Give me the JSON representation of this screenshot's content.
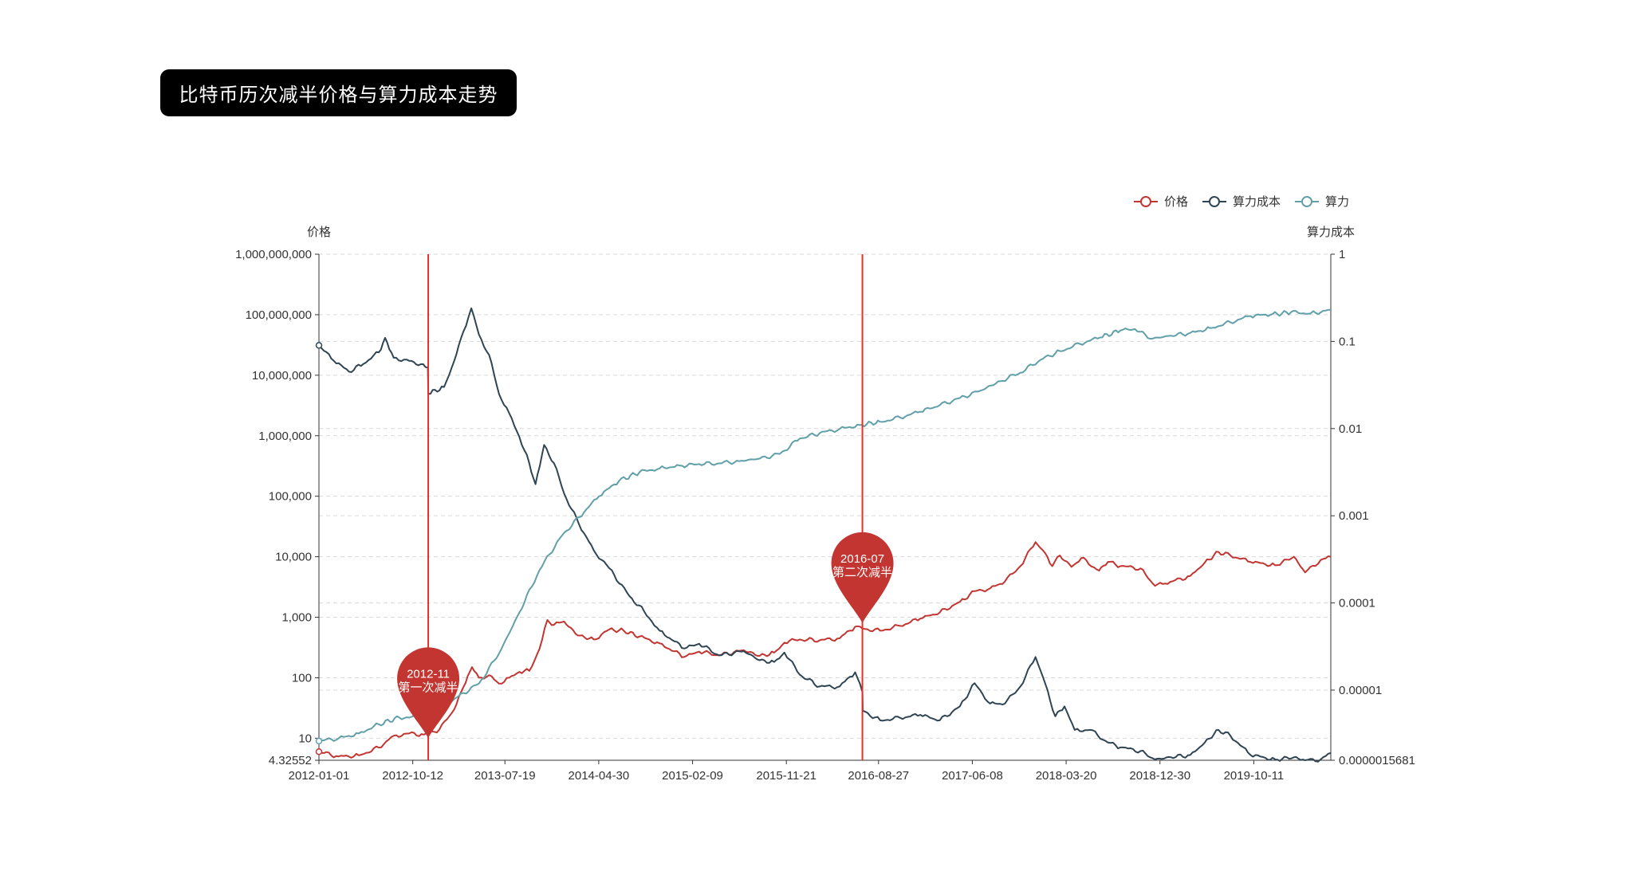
{
  "title": "比特币历次减半价格与算力成本走势",
  "colors": {
    "price": "#c23531",
    "cost": "#2f4554",
    "hashrate": "#61a0a8",
    "halving_line": "#e8302a",
    "grid": "#d9d9d9",
    "axis": "#333333"
  },
  "chart_data": {
    "type": "line",
    "legend": {
      "position": "top-right",
      "items": [
        {
          "name": "价格",
          "color": "#c23531"
        },
        {
          "name": "算力成本",
          "color": "#2f4554"
        },
        {
          "name": "算力",
          "color": "#61a0a8"
        }
      ]
    },
    "x_axis": {
      "type": "date",
      "start": "2012-01-01",
      "end": "2020-06-01",
      "tick_labels": [
        "2012-01-01",
        "2012-10-12",
        "2013-07-19",
        "2014-04-30",
        "2015-02-09",
        "2015-11-21",
        "2016-08-27",
        "2017-06-08",
        "2018-03-20",
        "2018-12-30",
        "2019-10-11"
      ]
    },
    "y_left": {
      "name": "价格",
      "scale": "log",
      "min": 4.32552,
      "max": 1000000000,
      "tick_labels": [
        "1,000,000,000",
        "100,000,000",
        "10,000,000",
        "1,000,000",
        "100,000",
        "10,000",
        "1,000",
        "100",
        "10",
        "4.32552"
      ],
      "tick_values": [
        1000000000,
        100000000,
        10000000,
        1000000,
        100000,
        10000,
        1000,
        100,
        10,
        4.32552
      ]
    },
    "y_right": {
      "name": "算力成本",
      "scale": "log",
      "min": 1.5681e-06,
      "max": 1,
      "tick_labels": [
        "1",
        "0.1",
        "0.01",
        "0.001",
        "0.0001",
        "0.00001",
        "0.0000015681"
      ],
      "tick_values": [
        1,
        0.1,
        0.01,
        0.001,
        0.0001,
        1e-05,
        1.5681e-06
      ]
    },
    "grid": true,
    "series": [
      {
        "name": "价格",
        "axis": "left",
        "points": [
          [
            "2012-01-01",
            6
          ],
          [
            "2012-03-01",
            5
          ],
          [
            "2012-05-01",
            5.2
          ],
          [
            "2012-07-01",
            7
          ],
          [
            "2012-08-15",
            11
          ],
          [
            "2012-10-01",
            12
          ],
          [
            "2012-11-15",
            11.5
          ],
          [
            "2013-01-01",
            14
          ],
          [
            "2013-02-15",
            30
          ],
          [
            "2013-03-15",
            70
          ],
          [
            "2013-04-10",
            150
          ],
          [
            "2013-05-01",
            100
          ],
          [
            "2013-06-01",
            110
          ],
          [
            "2013-07-01",
            80
          ],
          [
            "2013-08-01",
            100
          ],
          [
            "2013-09-01",
            125
          ],
          [
            "2013-10-01",
            130
          ],
          [
            "2013-11-01",
            300
          ],
          [
            "2013-11-25",
            900
          ],
          [
            "2013-12-15",
            750
          ],
          [
            "2014-01-15",
            850
          ],
          [
            "2014-02-25",
            500
          ],
          [
            "2014-04-15",
            430
          ],
          [
            "2014-06-01",
            630
          ],
          [
            "2014-07-15",
            600
          ],
          [
            "2014-09-01",
            480
          ],
          [
            "2014-11-01",
            370
          ],
          [
            "2015-01-15",
            220
          ],
          [
            "2015-03-01",
            270
          ],
          [
            "2015-05-01",
            235
          ],
          [
            "2015-07-15",
            285
          ],
          [
            "2015-09-01",
            230
          ],
          [
            "2015-10-15",
            260
          ],
          [
            "2015-11-15",
            380
          ],
          [
            "2016-01-01",
            430
          ],
          [
            "2016-03-01",
            415
          ],
          [
            "2016-05-01",
            450
          ],
          [
            "2016-06-17",
            700
          ],
          [
            "2016-07-09",
            650
          ],
          [
            "2016-09-01",
            600
          ],
          [
            "2016-11-01",
            720
          ],
          [
            "2017-01-01",
            950
          ],
          [
            "2017-03-01",
            1200
          ],
          [
            "2017-05-01",
            1800
          ],
          [
            "2017-06-15",
            2700
          ],
          [
            "2017-08-01",
            3000
          ],
          [
            "2017-09-15",
            3900
          ],
          [
            "2017-11-01",
            7000
          ],
          [
            "2017-12-17",
            17500
          ],
          [
            "2018-01-15",
            11500
          ],
          [
            "2018-02-06",
            7000
          ],
          [
            "2018-03-01",
            10500
          ],
          [
            "2018-04-05",
            6800
          ],
          [
            "2018-05-05",
            9500
          ],
          [
            "2018-06-28",
            5900
          ],
          [
            "2018-07-25",
            8200
          ],
          [
            "2018-09-01",
            7000
          ],
          [
            "2018-11-01",
            6400
          ],
          [
            "2018-12-15",
            3300
          ],
          [
            "2019-01-15",
            3600
          ],
          [
            "2019-04-01",
            4800
          ],
          [
            "2019-05-15",
            8000
          ],
          [
            "2019-06-26",
            12000
          ],
          [
            "2019-08-01",
            10500
          ],
          [
            "2019-10-01",
            8200
          ],
          [
            "2019-12-15",
            7200
          ],
          [
            "2020-02-10",
            10000
          ],
          [
            "2020-03-15",
            5500
          ],
          [
            "2020-05-01",
            8800
          ],
          [
            "2020-06-01",
            10000
          ]
        ]
      },
      {
        "name": "算力成本",
        "axis": "right",
        "points": [
          [
            "2012-01-01",
            0.09
          ],
          [
            "2012-02-15",
            0.06
          ],
          [
            "2012-04-01",
            0.045
          ],
          [
            "2012-05-15",
            0.055
          ],
          [
            "2012-07-01",
            0.075
          ],
          [
            "2012-07-20",
            0.11
          ],
          [
            "2012-08-15",
            0.065
          ],
          [
            "2012-10-01",
            0.06
          ],
          [
            "2012-11-27",
            0.05
          ],
          [
            "2012-11-28",
            0.025
          ],
          [
            "2013-01-15",
            0.03
          ],
          [
            "2013-02-15",
            0.06
          ],
          [
            "2013-03-15",
            0.13
          ],
          [
            "2013-04-08",
            0.24
          ],
          [
            "2013-05-01",
            0.12
          ],
          [
            "2013-06-01",
            0.07
          ],
          [
            "2013-07-01",
            0.025
          ],
          [
            "2013-08-01",
            0.015
          ],
          [
            "2013-09-01",
            0.008
          ],
          [
            "2013-10-01",
            0.004
          ],
          [
            "2013-10-20",
            0.0023
          ],
          [
            "2013-11-15",
            0.0065
          ],
          [
            "2013-12-15",
            0.004
          ],
          [
            "2014-01-15",
            0.0018
          ],
          [
            "2014-03-01",
            0.0008
          ],
          [
            "2014-04-15",
            0.0004
          ],
          [
            "2014-06-01",
            0.00025
          ],
          [
            "2014-08-01",
            0.00012
          ],
          [
            "2014-09-15",
            8e-05
          ],
          [
            "2014-11-01",
            4.8e-05
          ],
          [
            "2015-01-15",
            3e-05
          ],
          [
            "2015-03-01",
            3.4e-05
          ],
          [
            "2015-05-01",
            2.5e-05
          ],
          [
            "2015-07-15",
            2.8e-05
          ],
          [
            "2015-09-01",
            2.2e-05
          ],
          [
            "2015-10-15",
            2.1e-05
          ],
          [
            "2015-11-15",
            2.7e-05
          ],
          [
            "2016-01-01",
            1.5e-05
          ],
          [
            "2016-03-01",
            1.1e-05
          ],
          [
            "2016-05-01",
            1.1e-05
          ],
          [
            "2016-06-17",
            1.6e-05
          ],
          [
            "2016-07-09",
            9.5e-06
          ],
          [
            "2016-07-10",
            5.8e-06
          ],
          [
            "2016-09-01",
            4.5e-06
          ],
          [
            "2016-11-01",
            4.8e-06
          ],
          [
            "2017-01-01",
            5.2e-06
          ],
          [
            "2017-03-01",
            4.5e-06
          ],
          [
            "2017-05-01",
            6.5e-06
          ],
          [
            "2017-06-15",
            1.2e-05
          ],
          [
            "2017-08-01",
            7e-06
          ],
          [
            "2017-09-15",
            7e-06
          ],
          [
            "2017-11-01",
            1.1e-05
          ],
          [
            "2017-12-17",
            2.4e-05
          ],
          [
            "2018-01-15",
            1.2e-05
          ],
          [
            "2018-02-15",
            5e-06
          ],
          [
            "2018-03-15",
            6.5e-06
          ],
          [
            "2018-04-15",
            3.5e-06
          ],
          [
            "2018-06-01",
            3.5e-06
          ],
          [
            "2018-07-25",
            2.5e-06
          ],
          [
            "2018-09-01",
            2.2e-06
          ],
          [
            "2018-11-01",
            2e-06
          ],
          [
            "2018-12-15",
            1.6e-06
          ],
          [
            "2019-02-01",
            1.7e-06
          ],
          [
            "2019-04-01",
            1.8e-06
          ],
          [
            "2019-05-15",
            2.5e-06
          ],
          [
            "2019-06-26",
            3.5e-06
          ],
          [
            "2019-08-01",
            3e-06
          ],
          [
            "2019-10-01",
            1.8e-06
          ],
          [
            "2019-12-15",
            1.6e-06
          ],
          [
            "2020-02-10",
            1.7e-06
          ],
          [
            "2020-03-15",
            1.5681e-06
          ],
          [
            "2020-05-01",
            1.6e-06
          ],
          [
            "2020-06-01",
            1.9e-06
          ]
        ]
      },
      {
        "name": "算力",
        "axis": "left",
        "points": [
          [
            "2012-01-01",
            9
          ],
          [
            "2012-03-01",
            10
          ],
          [
            "2012-05-01",
            12
          ],
          [
            "2012-07-01",
            17
          ],
          [
            "2012-09-01",
            22
          ],
          [
            "2012-11-01",
            22
          ],
          [
            "2013-01-01",
            30
          ],
          [
            "2013-03-01",
            50
          ],
          [
            "2013-05-01",
            80
          ],
          [
            "2013-07-01",
            250
          ],
          [
            "2013-09-01",
            1200
          ],
          [
            "2013-11-01",
            6000
          ],
          [
            "2014-01-01",
            20000
          ],
          [
            "2014-03-01",
            45000
          ],
          [
            "2014-05-01",
            100000
          ],
          [
            "2014-07-01",
            180000
          ],
          [
            "2014-09-01",
            250000
          ],
          [
            "2014-11-01",
            290000
          ],
          [
            "2015-01-01",
            320000
          ],
          [
            "2015-03-01",
            340000
          ],
          [
            "2015-05-01",
            350000
          ],
          [
            "2015-07-01",
            380000
          ],
          [
            "2015-09-01",
            420000
          ],
          [
            "2015-11-01",
            500000
          ],
          [
            "2016-01-01",
            900000
          ],
          [
            "2016-03-01",
            1100000
          ],
          [
            "2016-05-01",
            1300000
          ],
          [
            "2016-07-01",
            1500000
          ],
          [
            "2016-09-01",
            1700000
          ],
          [
            "2016-11-01",
            2000000
          ],
          [
            "2017-01-01",
            2500000
          ],
          [
            "2017-03-01",
            3200000
          ],
          [
            "2017-05-01",
            4200000
          ],
          [
            "2017-07-01",
            5500000
          ],
          [
            "2017-09-01",
            8000000
          ],
          [
            "2017-11-01",
            11000000
          ],
          [
            "2018-01-01",
            18000000
          ],
          [
            "2018-03-01",
            25000000
          ],
          [
            "2018-05-01",
            33000000
          ],
          [
            "2018-07-01",
            42000000
          ],
          [
            "2018-09-01",
            55000000
          ],
          [
            "2018-10-15",
            58000000
          ],
          [
            "2018-12-01",
            40000000
          ],
          [
            "2019-02-01",
            45000000
          ],
          [
            "2019-04-01",
            50000000
          ],
          [
            "2019-06-01",
            60000000
          ],
          [
            "2019-08-01",
            75000000
          ],
          [
            "2019-10-01",
            95000000
          ],
          [
            "2019-12-01",
            100000000
          ],
          [
            "2020-02-01",
            110000000
          ],
          [
            "2020-04-01",
            105000000
          ],
          [
            "2020-06-01",
            120000000
          ]
        ]
      }
    ],
    "markers": [
      {
        "date": "2012-11-28",
        "line_label": "2012-11",
        "text": "第一次减半",
        "pin_value": 10
      },
      {
        "date": "2016-07-09",
        "line_label": "2016-07",
        "text": "第二次减半",
        "pin_value": 800
      }
    ]
  }
}
